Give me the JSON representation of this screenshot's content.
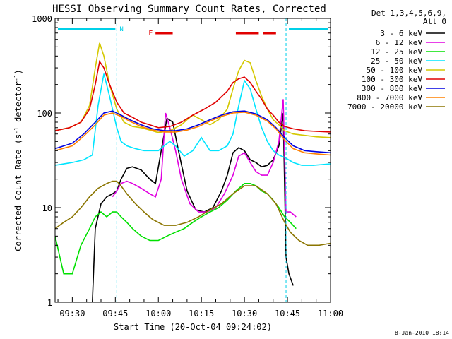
{
  "chart_data": {
    "type": "line",
    "title": "HESSI Observing Summary Count Rates, Corrected",
    "xlabel": "Start Time (20-Oct-04 09:24:02)",
    "ylabel_main": "Corrected Count Rate (s",
    "ylabel_sup1": "-1",
    "ylabel_mid": " detector",
    "ylabel_sup2": "-1",
    "ylabel_end": ")",
    "yscale": "log",
    "ylim": [
      1,
      1000
    ],
    "xlim_minutes": [
      0,
      96
    ],
    "x_ticks": [
      {
        "label": "09:30",
        "t": 6
      },
      {
        "label": "09:45",
        "t": 21
      },
      {
        "label": "10:00",
        "t": 36
      },
      {
        "label": "10:15",
        "t": 51
      },
      {
        "label": "10:30",
        "t": 66
      },
      {
        "label": "10:45",
        "t": 81
      },
      {
        "label": "11:00",
        "t": 96
      }
    ],
    "y_ticks": [
      {
        "label": "1",
        "v": 1
      },
      {
        "label": "10",
        "v": 10
      },
      {
        "label": "100",
        "v": 100
      },
      {
        "label": "1000",
        "v": 1000
      }
    ],
    "legend_header": [
      "Det 1,3,4,5,6,9,",
      "Att 0"
    ],
    "legend_position": "right",
    "timestamp": "8-Jan-2010 18:14",
    "night_marker": "N",
    "flare_marker": "F",
    "night_boundaries_t": [
      21.5,
      80.5,
      96
    ],
    "night_bars": [
      [
        0,
        21.5
      ],
      [
        80.5,
        96
      ]
    ],
    "flare_bars": [
      [
        35,
        41
      ],
      [
        63,
        71
      ],
      [
        72.5,
        77
      ]
    ],
    "series": [
      {
        "name": "3 - 6 keV",
        "color": "#000000",
        "t": [
          13,
          14,
          16,
          18,
          20,
          21.5,
          23,
          25,
          27,
          30,
          33,
          35,
          37,
          39,
          41,
          43,
          46,
          49,
          52,
          55,
          58,
          60,
          62,
          64,
          66,
          68,
          70,
          72,
          74,
          76,
          78,
          79.5,
          80.5,
          81.5,
          83
        ],
        "v": [
          1,
          6,
          11,
          13,
          14,
          15,
          20,
          26,
          27,
          25,
          20,
          18,
          40,
          88,
          80,
          40,
          15,
          9.5,
          9.0,
          10,
          15,
          22,
          38,
          43,
          40,
          32,
          30,
          27,
          28,
          32,
          45,
          100,
          3,
          2,
          1.5
        ]
      },
      {
        "name": "6 - 12 keV",
        "color": "#e000e0",
        "t": [
          20,
          21.5,
          23,
          25,
          27,
          30,
          33,
          35,
          37,
          38.5,
          40,
          42,
          44,
          47,
          50,
          53,
          56,
          59,
          62,
          64,
          66,
          68,
          70,
          72,
          74,
          76,
          78,
          79.5,
          80.5,
          82,
          84
        ],
        "v": [
          13,
          15,
          18,
          19,
          18,
          16,
          14,
          13,
          20,
          100,
          70,
          40,
          20,
          11,
          9,
          9,
          10,
          14,
          22,
          35,
          38,
          30,
          24,
          22,
          22,
          30,
          50,
          140,
          9,
          9,
          8
        ]
      },
      {
        "name": "12 - 25 keV",
        "color": "#00e000",
        "t": [
          0,
          3,
          6,
          9,
          12,
          14,
          16,
          18,
          20,
          21.5,
          23,
          25,
          27,
          30,
          33,
          36,
          39,
          42,
          45,
          48,
          51,
          54,
          57,
          60,
          63,
          66,
          68,
          70,
          72,
          74,
          76,
          78,
          80,
          82,
          84
        ],
        "v": [
          5,
          2,
          2,
          4,
          6,
          8,
          9,
          8,
          9,
          9,
          8,
          7,
          6,
          5,
          4.5,
          4.5,
          5,
          5.5,
          6,
          7,
          8,
          9,
          10,
          12,
          15,
          18,
          18,
          17,
          15,
          14,
          12,
          10,
          8,
          7,
          6
        ]
      },
      {
        "name": "25 - 50 keV",
        "color": "#00e5ff",
        "t": [
          0,
          6,
          10,
          13,
          15,
          17,
          19,
          21.5,
          23,
          25,
          28,
          31,
          34,
          36,
          38,
          40,
          42,
          45,
          48,
          51,
          54,
          57,
          60,
          62,
          64,
          66,
          68,
          70,
          72,
          74,
          76,
          78,
          80,
          83,
          86,
          90,
          96
        ],
        "v": [
          28,
          30,
          32,
          36,
          120,
          260,
          150,
          70,
          50,
          45,
          42,
          40,
          40,
          40,
          45,
          50,
          45,
          35,
          40,
          55,
          40,
          40,
          45,
          60,
          120,
          220,
          180,
          110,
          70,
          50,
          40,
          36,
          34,
          30,
          28,
          28,
          29
        ]
      },
      {
        "name": "50 - 100 keV",
        "color": "#d4c800",
        "t": [
          0,
          5,
          9,
          12,
          14,
          15.5,
          17,
          19,
          21.5,
          24,
          27,
          30,
          33,
          36,
          40,
          44,
          46,
          48,
          51,
          54,
          57,
          60,
          62,
          64,
          66,
          68,
          70,
          72,
          74,
          76,
          78,
          80,
          83,
          87,
          91,
          96
        ],
        "v": [
          65,
          70,
          80,
          120,
          300,
          550,
          400,
          200,
          110,
          80,
          72,
          70,
          66,
          62,
          65,
          75,
          85,
          95,
          85,
          75,
          85,
          110,
          180,
          280,
          360,
          340,
          220,
          150,
          110,
          85,
          75,
          65,
          60,
          58,
          56,
          55
        ]
      },
      {
        "name": "100 - 300 keV",
        "color": "#e00000",
        "t": [
          0,
          5,
          9,
          12,
          14,
          15.5,
          17,
          19,
          21.5,
          24,
          27,
          30,
          33,
          36,
          40,
          44,
          48,
          52,
          56,
          60,
          62,
          64,
          66,
          68,
          70,
          72,
          74,
          76,
          78,
          80,
          83,
          87,
          91,
          96
        ],
        "v": [
          65,
          70,
          80,
          110,
          200,
          350,
          300,
          200,
          130,
          100,
          90,
          80,
          75,
          70,
          72,
          80,
          95,
          110,
          130,
          170,
          210,
          230,
          240,
          210,
          170,
          140,
          110,
          95,
          80,
          72,
          68,
          65,
          64,
          63
        ]
      },
      {
        "name": "300 - 800 keV",
        "color": "#0000e0",
        "t": [
          0,
          6,
          10,
          14,
          17,
          20,
          23,
          26,
          30,
          34,
          38,
          42,
          46,
          50,
          54,
          58,
          62,
          66,
          70,
          74,
          77,
          80,
          83,
          87,
          91,
          96
        ],
        "v": [
          42,
          48,
          60,
          80,
          100,
          105,
          95,
          85,
          75,
          68,
          65,
          65,
          68,
          75,
          85,
          95,
          103,
          105,
          98,
          85,
          70,
          55,
          45,
          40,
          39,
          38
        ]
      },
      {
        "name": "800 - 7000 keV",
        "color": "#ff8000",
        "t": [
          0,
          6,
          10,
          14,
          17,
          20,
          23,
          26,
          30,
          34,
          38,
          42,
          46,
          50,
          54,
          58,
          62,
          66,
          70,
          74,
          77,
          80,
          83,
          87,
          91,
          96
        ],
        "v": [
          40,
          45,
          57,
          75,
          95,
          100,
          92,
          82,
          72,
          66,
          63,
          63,
          66,
          72,
          82,
          92,
          100,
          102,
          95,
          82,
          68,
          52,
          42,
          38,
          37,
          36
        ]
      },
      {
        "name": "7000 - 20000 keV",
        "color": "#8b7500",
        "t": [
          0,
          3,
          6,
          9,
          12,
          15,
          18,
          20,
          21.5,
          23,
          25,
          28,
          31,
          34,
          38,
          42,
          46,
          50,
          54,
          58,
          62,
          66,
          70,
          74,
          77,
          80,
          82,
          85,
          88,
          92,
          96
        ],
        "v": [
          6,
          7,
          8,
          10,
          13,
          16,
          18,
          19,
          19,
          17,
          14,
          11,
          9,
          7.5,
          6.5,
          6.5,
          7,
          8,
          9.5,
          11,
          14,
          17,
          17,
          14,
          11,
          7,
          5.5,
          4.5,
          4,
          4,
          4.2
        ]
      }
    ]
  }
}
